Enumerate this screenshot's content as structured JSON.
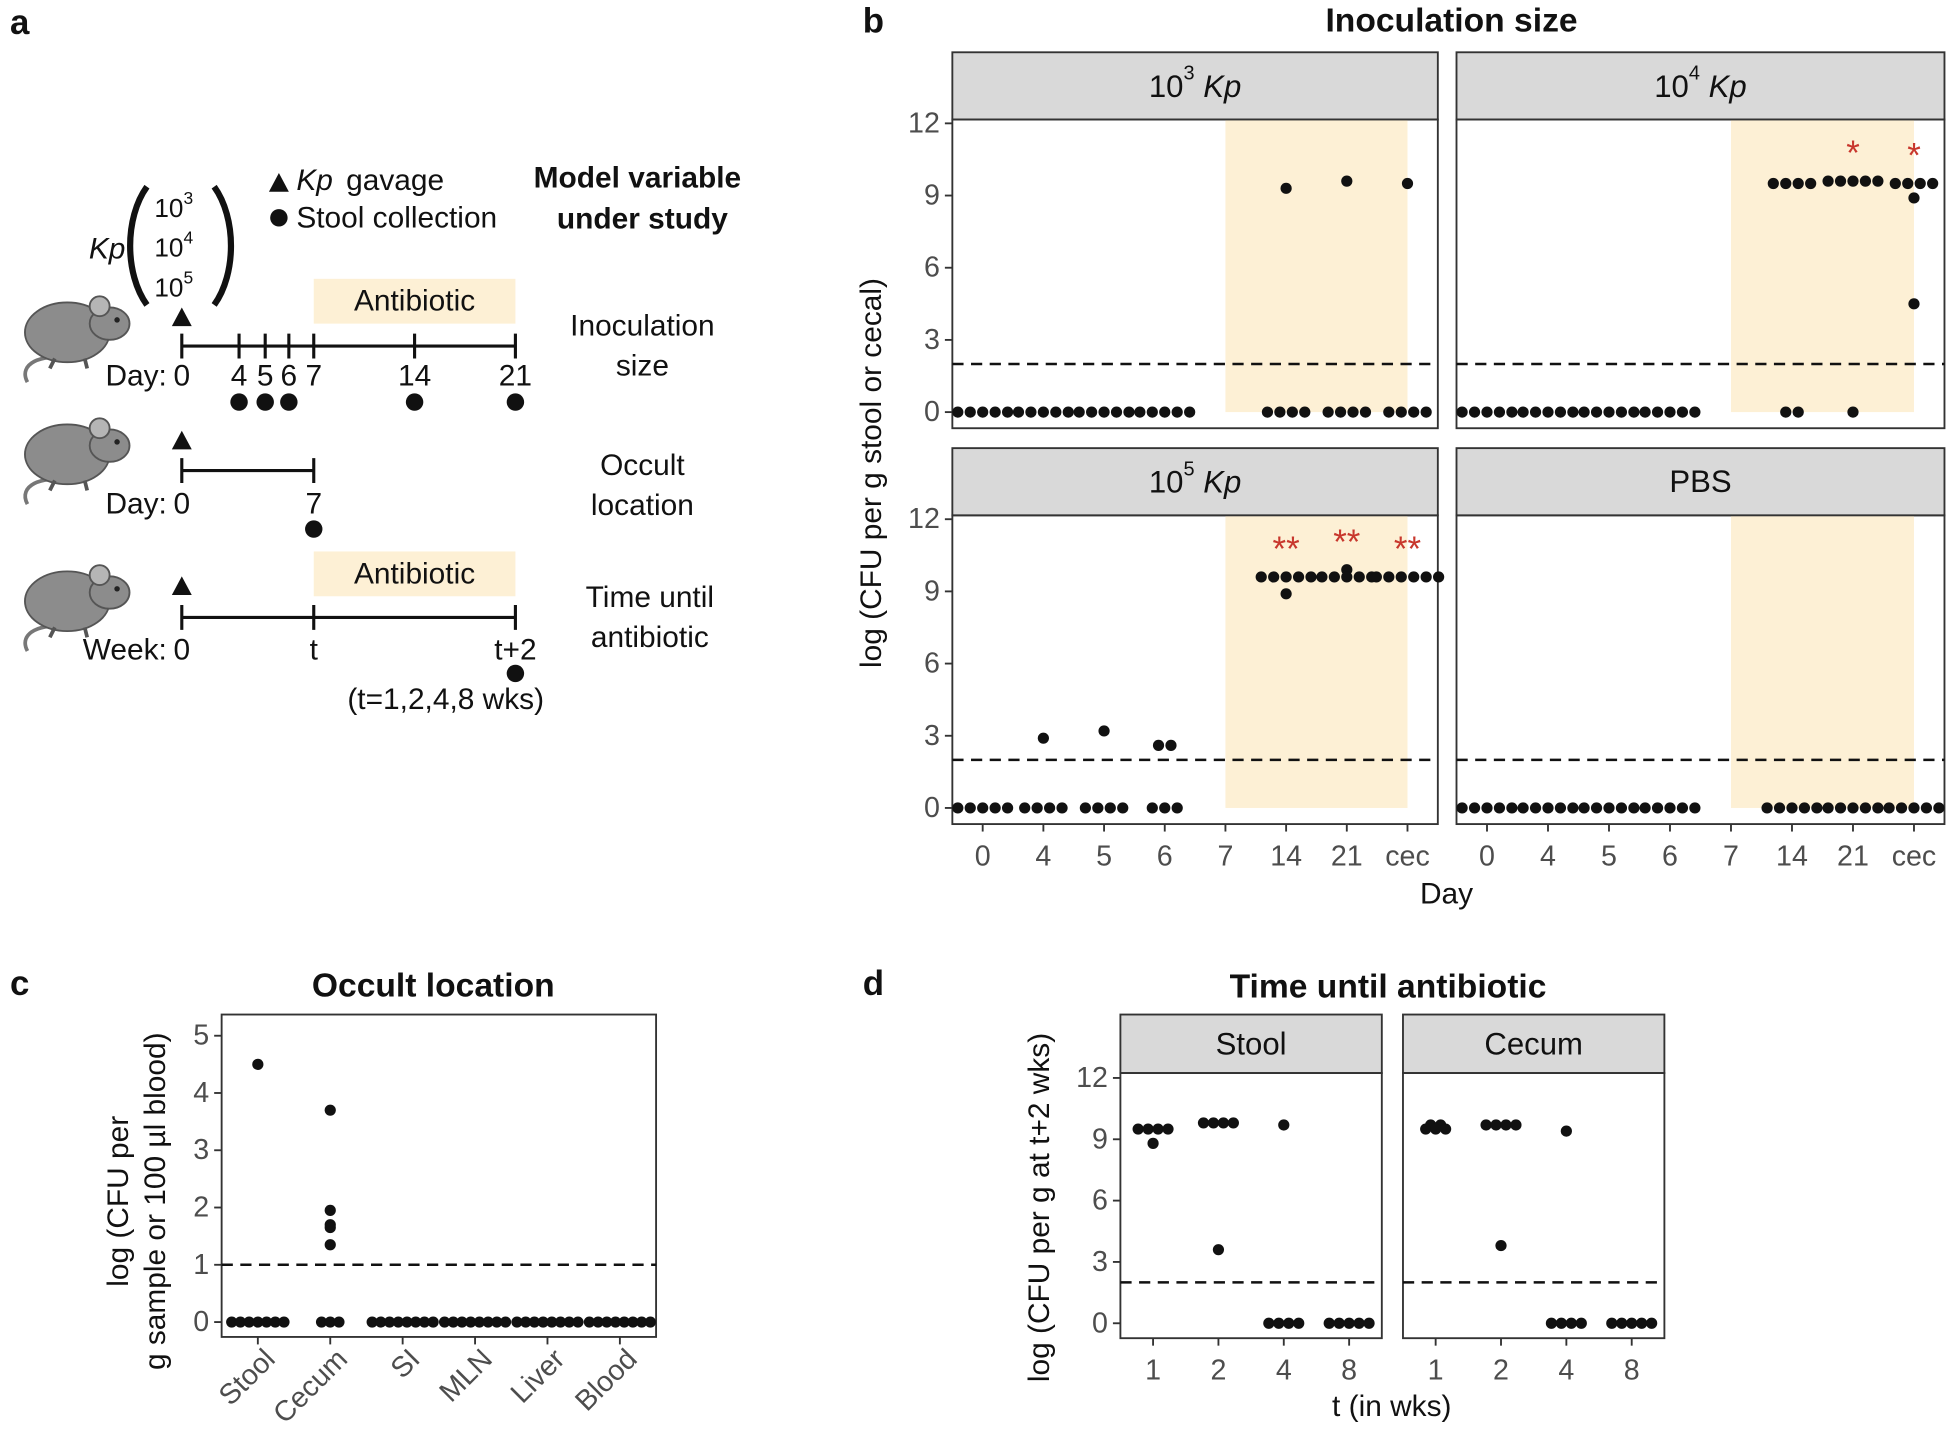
{
  "panel_a": {
    "label": "a",
    "gavage_organism": "Kp",
    "gavage": "gavage",
    "stool": "Stool collection",
    "variable_header": [
      "Model variable",
      "under study"
    ],
    "dose_organism": "Kp",
    "doses": [
      {
        "base": "10",
        "exp": "3"
      },
      {
        "base": "10",
        "exp": "4"
      },
      {
        "base": "10",
        "exp": "5"
      }
    ],
    "antibiotic": "Antibiotic",
    "rows": [
      {
        "variable": [
          "Inoculation",
          "size"
        ],
        "unit": "Day:",
        "ticks": [
          "0",
          "4",
          "5",
          "6",
          "7",
          "14",
          "21"
        ]
      },
      {
        "variable": [
          "Occult",
          "location"
        ],
        "unit": "Day:",
        "ticks": [
          "0",
          "7"
        ]
      },
      {
        "variable": [
          "Time until",
          "antibiotic"
        ],
        "unit": "Week:",
        "ticks": [
          "0",
          "t",
          "t+2"
        ],
        "note": "(t=1,2,4,8 wks)"
      }
    ]
  },
  "chart_data": [
    {
      "type": "strip",
      "panel_label": "b",
      "title": "Inoculation size",
      "x_label": "Day",
      "y_label": "log (CFU per g stool or cecal)",
      "categories": [
        "0",
        "4",
        "5",
        "6",
        "7",
        "14",
        "21",
        "cec"
      ],
      "ylim": [
        -0.67,
        12.16
      ],
      "yticks": [
        0,
        3,
        6,
        9,
        12
      ],
      "threshold": 2,
      "color": "#111111",
      "significance_color": "#c8372d",
      "facets": [
        {
          "title": {
            "base": "10",
            "exp": "3",
            "organism": "Kp"
          },
          "values": [
            [
              0,
              0,
              0,
              0,
              0
            ],
            [
              0,
              0,
              0,
              0,
              0
            ],
            [
              0,
              0,
              0,
              0,
              0
            ],
            [
              0,
              0,
              0,
              0,
              0
            ],
            [],
            [
              9.3,
              0,
              0,
              0,
              0
            ],
            [
              9.6,
              0,
              0,
              0,
              0
            ],
            [
              9.5,
              0,
              0,
              0,
              0
            ]
          ]
        },
        {
          "title": {
            "base": "10",
            "exp": "4",
            "organism": "Kp"
          },
          "values": [
            [
              0,
              0,
              0,
              0,
              0
            ],
            [
              0,
              0,
              0,
              0,
              0
            ],
            [
              0,
              0,
              0,
              0,
              0
            ],
            [
              0,
              0,
              0,
              0,
              0
            ],
            [],
            [
              9.5,
              9.5,
              9.5,
              9.5,
              0,
              0
            ],
            [
              9.6,
              9.6,
              9.6,
              9.6,
              9.6,
              0
            ],
            [
              9.5,
              9.5,
              9.5,
              9.5,
              8.9,
              4.5
            ]
          ],
          "significance": [
            null,
            null,
            null,
            null,
            null,
            null,
            "*",
            "*"
          ]
        },
        {
          "title": {
            "base": "10",
            "exp": "5",
            "organism": "Kp"
          },
          "values": [
            [
              0,
              0,
              0,
              0,
              0
            ],
            [
              2.9,
              0,
              0,
              0,
              0
            ],
            [
              3.2,
              0,
              0,
              0,
              0
            ],
            [
              2.6,
              2.6,
              0,
              0,
              0
            ],
            [],
            [
              9.6,
              9.6,
              9.6,
              9.6,
              9.6,
              8.9
            ],
            [
              9.9,
              9.6,
              9.6,
              9.6,
              9.6,
              9.6
            ],
            [
              9.6,
              9.6,
              9.6,
              9.6,
              9.6,
              9.6
            ]
          ],
          "significance": [
            null,
            null,
            null,
            null,
            null,
            "**",
            "**",
            "**"
          ]
        },
        {
          "title": "PBS",
          "values": [
            [
              0,
              0,
              0,
              0,
              0
            ],
            [
              0,
              0,
              0,
              0,
              0
            ],
            [
              0,
              0,
              0,
              0,
              0
            ],
            [
              0,
              0,
              0,
              0,
              0
            ],
            [],
            [
              0,
              0,
              0,
              0,
              0
            ],
            [
              0,
              0,
              0,
              0,
              0
            ],
            [
              0,
              0,
              0,
              0,
              0
            ]
          ]
        }
      ]
    },
    {
      "type": "strip",
      "panel_label": "c",
      "title": "Occult location",
      "y_label": [
        "log (CFU per",
        "g sample or 100 µl blood)"
      ],
      "categories": [
        "Stool",
        "Cecum",
        "SI",
        "MLN",
        "Liver",
        "Blood"
      ],
      "ylim": [
        -0.26,
        5.37
      ],
      "yticks": [
        0,
        1,
        2,
        3,
        4,
        5
      ],
      "threshold": 1,
      "color": "#111111",
      "facets": [
        {
          "values": [
            [
              4.5,
              0,
              0,
              0,
              0,
              0,
              0,
              0
            ],
            [
              3.7,
              1.95,
              1.7,
              1.65,
              1.35,
              0,
              0,
              0
            ],
            [
              0,
              0,
              0,
              0,
              0,
              0,
              0,
              0
            ],
            [
              0,
              0,
              0,
              0,
              0,
              0,
              0,
              0
            ],
            [
              0,
              0,
              0,
              0,
              0,
              0,
              0,
              0
            ],
            [
              0,
              0,
              0,
              0,
              0,
              0,
              0,
              0
            ]
          ]
        }
      ]
    },
    {
      "type": "strip",
      "panel_label": "d",
      "title": "Time until antibiotic",
      "x_label": "t (in wks)",
      "y_label": "log (CFU per g at t+2 wks)",
      "categories": [
        "1",
        "2",
        "4",
        "8"
      ],
      "ylim": [
        -0.73,
        12.24
      ],
      "yticks": [
        0,
        3,
        6,
        9,
        12
      ],
      "threshold": 2,
      "color": "#111111",
      "facets": [
        {
          "title": "Stool",
          "values": [
            [
              9.5,
              9.5,
              9.5,
              9.5,
              8.8
            ],
            [
              9.8,
              9.8,
              9.8,
              9.8,
              3.6
            ],
            [
              9.7,
              0,
              0,
              0,
              0
            ],
            [
              0,
              0,
              0,
              0,
              0
            ]
          ]
        },
        {
          "title": "Cecum",
          "values": [
            [
              9.7,
              9.7,
              9.5,
              9.5,
              9.5
            ],
            [
              9.7,
              9.7,
              9.7,
              9.7,
              3.8
            ],
            [
              9.4,
              0,
              0,
              0,
              0
            ],
            [
              0,
              0,
              0,
              0,
              0
            ]
          ]
        }
      ]
    }
  ]
}
